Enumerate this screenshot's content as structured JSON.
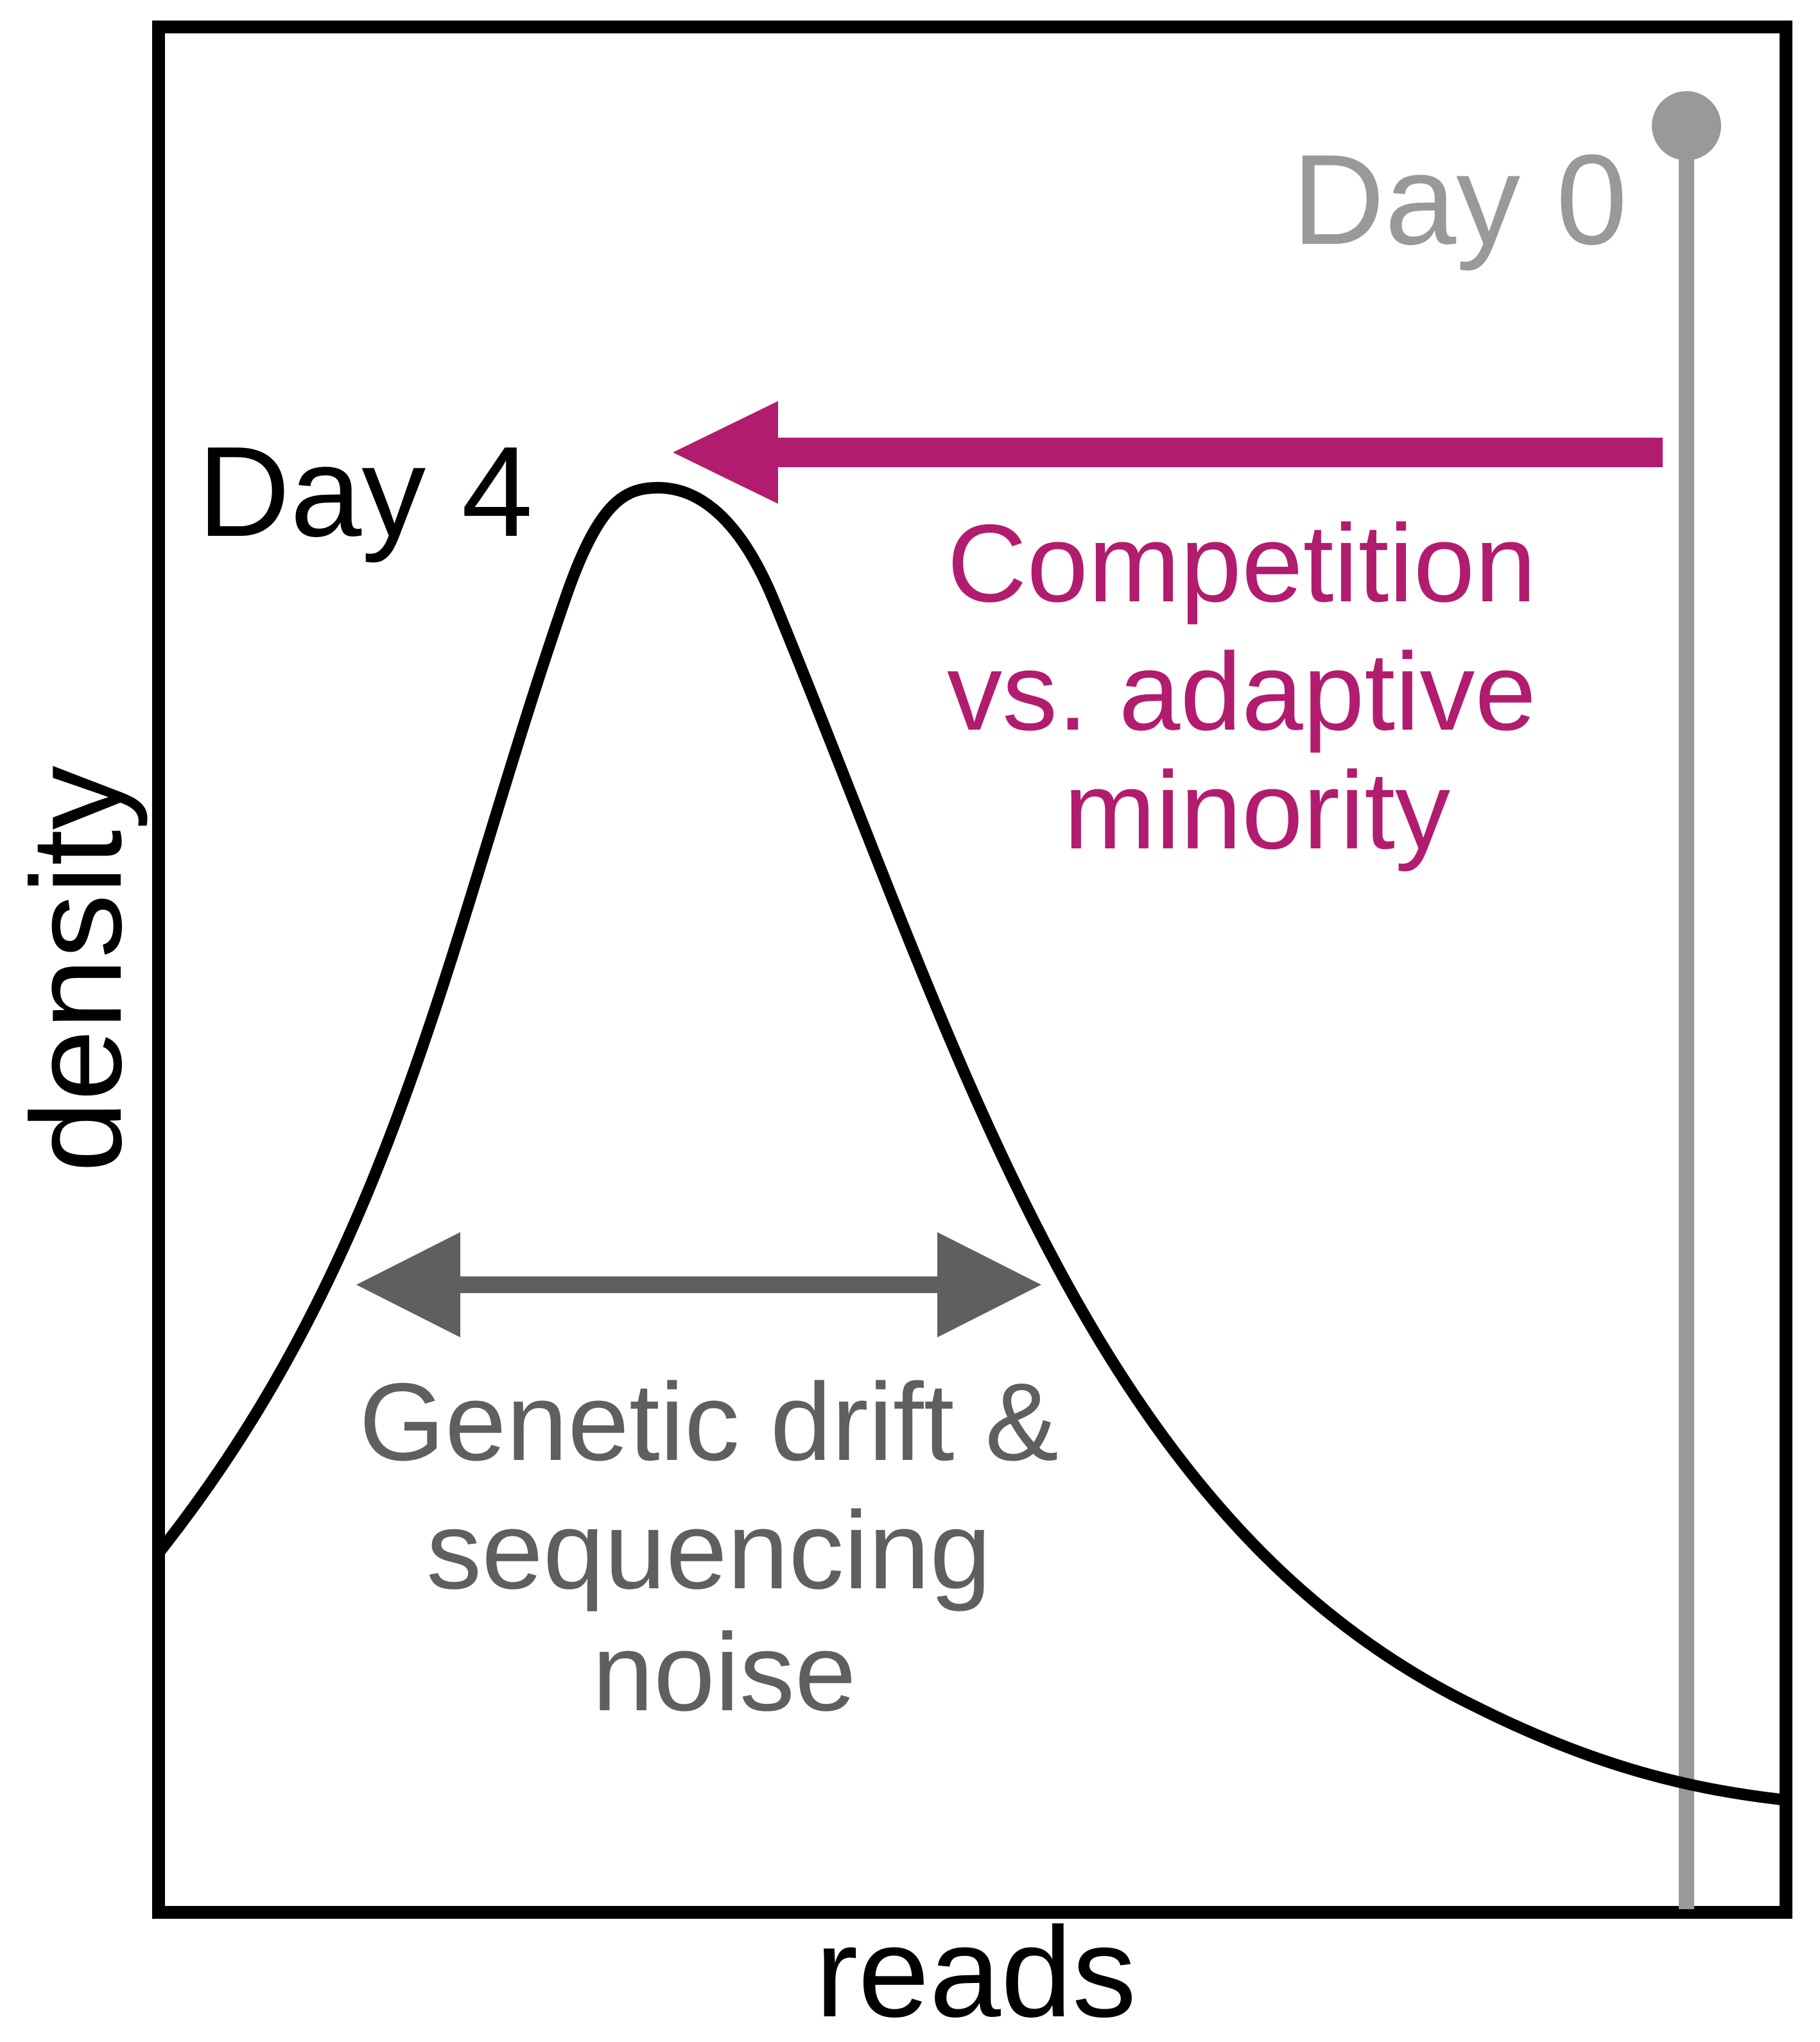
{
  "axes": {
    "xlabel": "reads",
    "ylabel": "density"
  },
  "labels": {
    "day0": "Day 0",
    "day4": "Day 4",
    "competition_line1": "Competition",
    "competition_line2": "vs. adaptive",
    "competition_line3": "minority",
    "noise_line1": "Genetic drift &",
    "noise_line2": "sequencing",
    "noise_line3": "noise"
  },
  "colors": {
    "frame": "#000000",
    "day4_curve": "#000000",
    "day0_marker": "#999999",
    "competition_arrow": "#b21c6e",
    "noise_arrow": "#5f5f5f"
  }
}
